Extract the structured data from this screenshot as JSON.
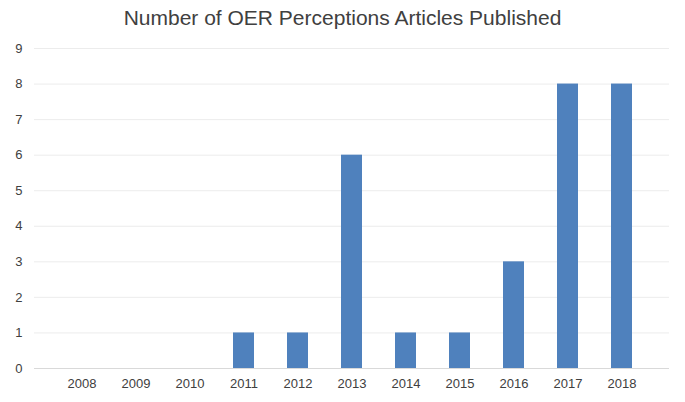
{
  "chart_data": {
    "type": "bar",
    "title": "Number of OER Perceptions Articles Published",
    "categories": [
      "2008",
      "2009",
      "2010",
      "2011",
      "2012",
      "2013",
      "2014",
      "2015",
      "2016",
      "2017",
      "2018"
    ],
    "values": [
      0,
      0,
      0,
      1,
      1,
      6,
      1,
      1,
      3,
      8,
      8
    ],
    "color": "#4f81bd",
    "ylim": [
      0,
      9
    ],
    "yticks": [
      0,
      1,
      2,
      3,
      4,
      5,
      6,
      7,
      8,
      9
    ],
    "grid": true
  }
}
